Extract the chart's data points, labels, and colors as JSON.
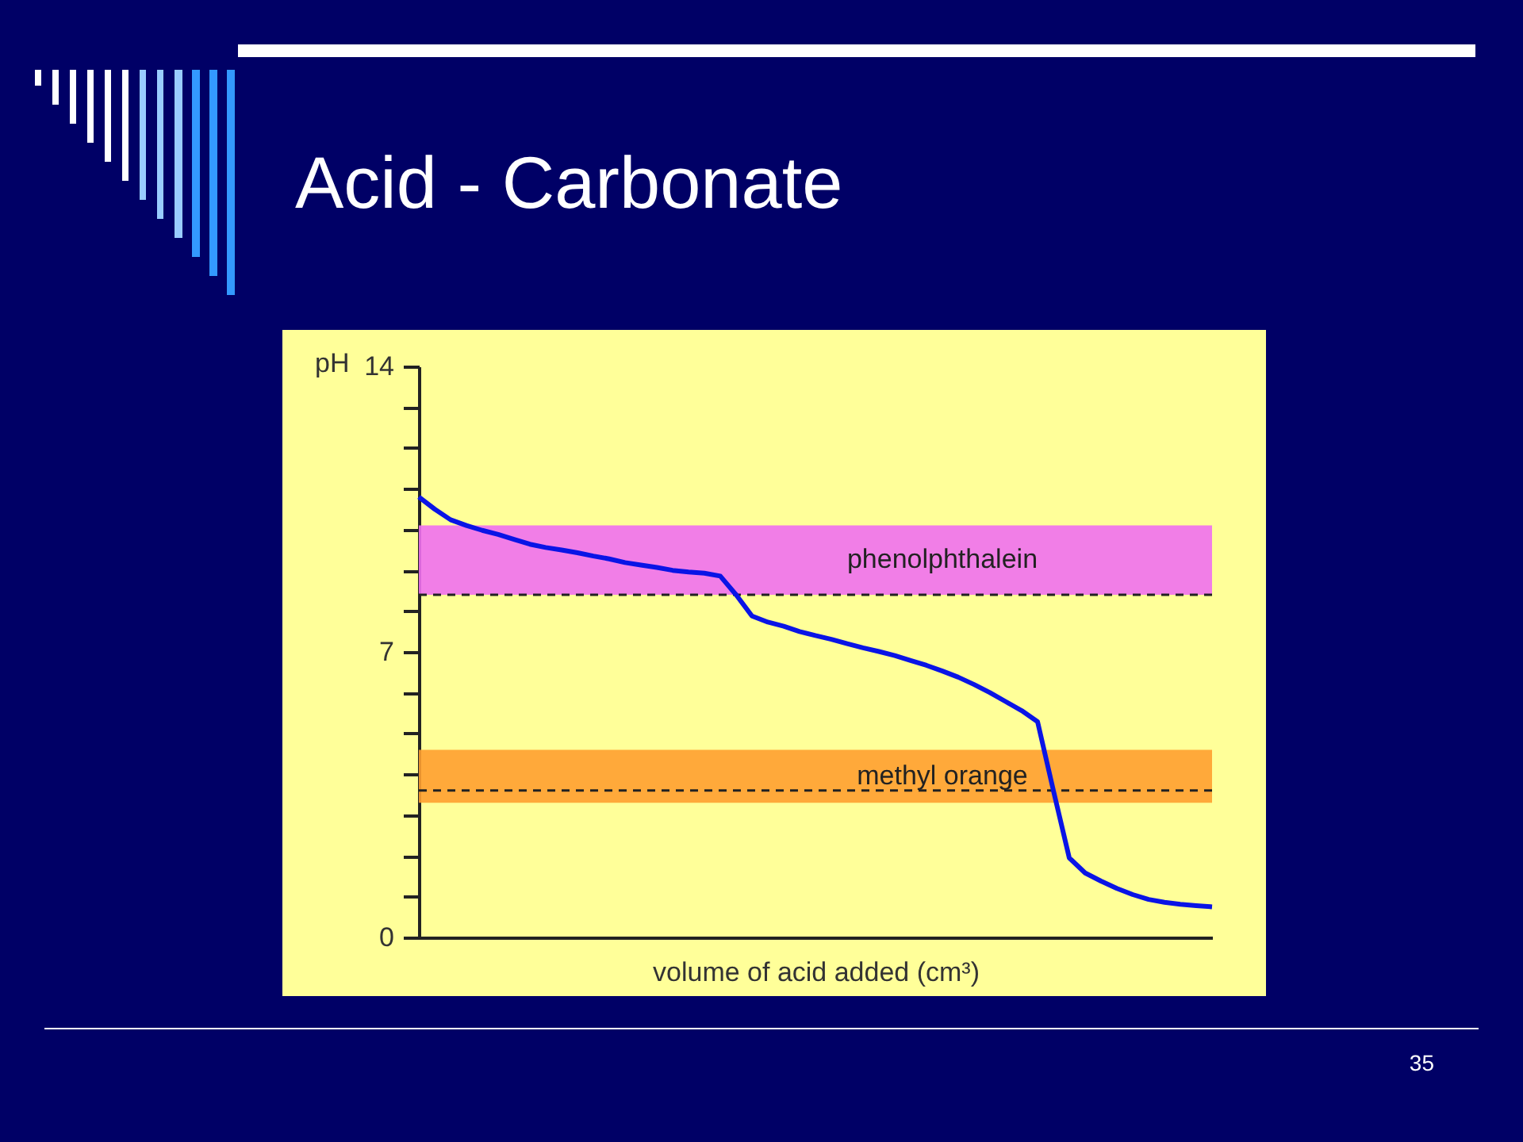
{
  "chart_data": {
    "type": "line",
    "title": "Acid - Carbonate",
    "xlabel": "volume of acid added (cm³)",
    "ylabel": "pH",
    "categories": [
      null,
      null,
      null,
      null,
      null,
      null,
      null,
      null,
      null,
      null,
      null,
      null,
      null,
      null,
      null,
      null,
      null,
      null,
      null,
      null,
      null,
      null,
      null,
      null,
      null,
      null,
      null,
      null,
      null,
      null,
      null,
      null,
      null,
      null,
      null,
      null,
      null,
      null,
      null,
      null,
      null,
      null,
      null,
      null,
      null,
      null,
      null,
      null,
      null,
      null,
      null
    ],
    "series": [
      {
        "color": "#0a14e6",
        "values": [
          10.8,
          10.5,
          10.24,
          10.1,
          9.98,
          9.88,
          9.76,
          9.64,
          9.56,
          9.5,
          9.43,
          9.35,
          9.28,
          9.19,
          9.13,
          9.07,
          9.0,
          8.96,
          8.93,
          8.86,
          8.4,
          7.88,
          7.73,
          7.63,
          7.5,
          7.4,
          7.31,
          7.2,
          7.1,
          7.01,
          6.91,
          6.79,
          6.67,
          6.53,
          6.38,
          6.2,
          6.0,
          5.78,
          5.56,
          5.29,
          3.6,
          1.95,
          1.58,
          1.38,
          1.2,
          1.05,
          0.93,
          0.86,
          0.81,
          0.78,
          0.75
        ]
      }
    ],
    "ylim": [
      0,
      14
    ],
    "yticks": [
      0,
      {
        "value": 1,
        "label": null
      },
      {
        "value": 2,
        "label": null
      },
      {
        "value": 3,
        "label": null
      },
      {
        "value": 4,
        "label": null
      },
      {
        "value": 5,
        "label": null
      },
      {
        "value": 6,
        "label": null
      },
      7,
      {
        "value": 8,
        "label": null
      },
      {
        "value": 9,
        "label": null
      },
      {
        "value": 10,
        "label": null
      },
      {
        "value": 11,
        "label": null
      },
      {
        "value": 12,
        "label": null
      },
      {
        "value": 13,
        "label": null
      },
      14
    ],
    "bands": [
      {
        "axis": "y",
        "from": 8.4,
        "to": 10.1,
        "label": "phenolphthalein",
        "color": "#f070f0"
      },
      {
        "axis": "y",
        "from": 3.3,
        "to": 4.6,
        "label": "methyl orange",
        "color": "#ffa030"
      }
    ],
    "ref_lines": [
      {
        "axis": "y",
        "value": 8.4,
        "line_style": "dashed",
        "color": "#222222"
      },
      {
        "axis": "y",
        "value": 3.6,
        "line_style": "dashed",
        "color": "#222222"
      }
    ],
    "grid": false,
    "line_style": "solid",
    "marker": "none",
    "annotations": [
      "35"
    ]
  }
}
